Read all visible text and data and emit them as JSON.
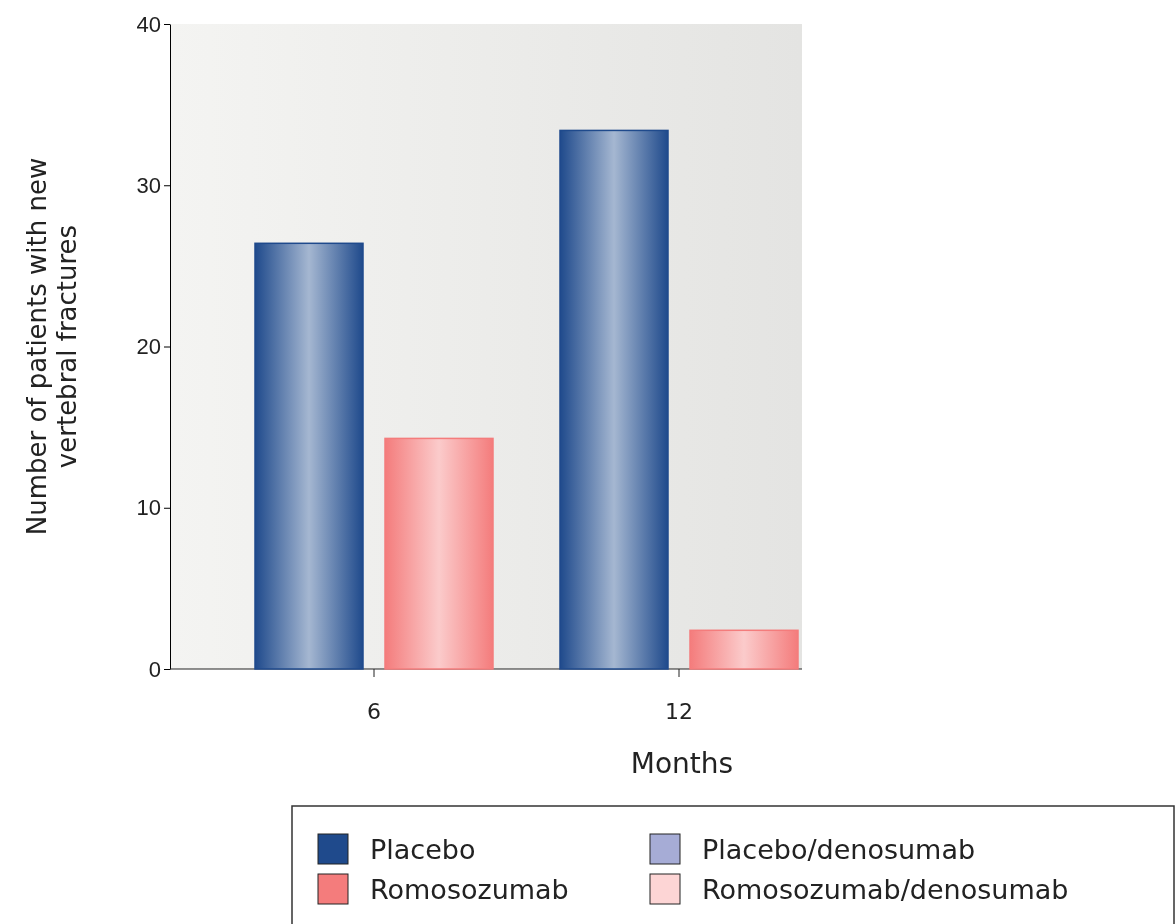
{
  "chart_data": {
    "type": "bar",
    "xlabel": "Months",
    "ylabel": "Number of patients with new vertebral fractures",
    "categories": [
      "6",
      "12"
    ],
    "series": [
      {
        "name": "Placebo",
        "color": "#1f4a8c",
        "values": [
          26.4,
          33.4
        ]
      },
      {
        "name": "Romosozumab",
        "color": "#f47c7c",
        "values": [
          14.3,
          2.4
        ]
      },
      {
        "name": "Placebo/denosumab",
        "color": "#a6acd6",
        "values": [
          null,
          null
        ]
      },
      {
        "name": "Romosozumab/denosumab",
        "color": "#fdd5d5",
        "values": [
          null,
          null
        ]
      }
    ],
    "ylim": [
      0,
      40
    ],
    "yticks": [
      0,
      10,
      20,
      30,
      40
    ],
    "grid": false,
    "legend": "bottom"
  }
}
